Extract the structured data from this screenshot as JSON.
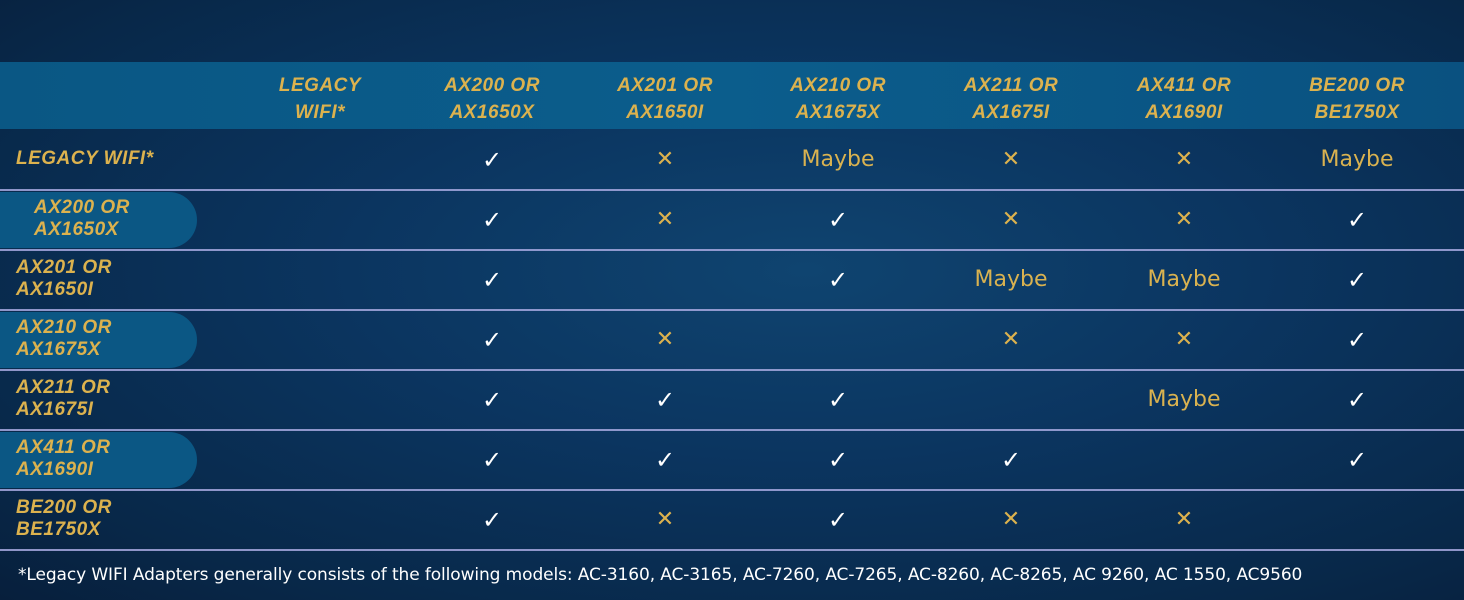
{
  "colors": {
    "gold": "#dcb24e",
    "check": "#ffffff",
    "header_band": "#0a5784",
    "background": "#0b3560",
    "row_divider": "#a7a9e0"
  },
  "symbols": {
    "yes": "✓",
    "no": "✕"
  },
  "columns": [
    [
      "LEGACY",
      "WIFI*"
    ],
    [
      "AX200 OR",
      "AX1650X"
    ],
    [
      "AX201 OR",
      "AX1650I"
    ],
    [
      "AX210 OR",
      "AX1675X"
    ],
    [
      "AX211 OR",
      "AX1675I"
    ],
    [
      "AX411 OR",
      "AX1690I"
    ],
    [
      "BE200 OR",
      "BE1750X"
    ]
  ],
  "rows": [
    {
      "label": [
        "LEGACY WIFI*"
      ],
      "highlight": false,
      "cells": [
        "",
        "yes",
        "no",
        "Maybe",
        "no",
        "no",
        "Maybe"
      ]
    },
    {
      "label": [
        "AX200 OR",
        "AX1650X"
      ],
      "highlight": true,
      "cells": [
        "",
        "yes",
        "no",
        "yes",
        "no",
        "no",
        "yes"
      ]
    },
    {
      "label": [
        "AX201 OR",
        "AX1650I"
      ],
      "highlight": false,
      "cells": [
        "",
        "yes",
        "",
        "yes",
        "Maybe",
        "Maybe",
        "yes"
      ]
    },
    {
      "label": [
        "AX210 OR",
        "AX1675X"
      ],
      "highlight": true,
      "cells": [
        "",
        "yes",
        "no",
        "",
        "no",
        "no",
        "yes"
      ]
    },
    {
      "label": [
        "AX211 OR",
        "AX1675I"
      ],
      "highlight": false,
      "cells": [
        "",
        "yes",
        "yes",
        "yes",
        "",
        "Maybe",
        "yes"
      ]
    },
    {
      "label": [
        "AX411 OR",
        "AX1690I"
      ],
      "highlight": true,
      "cells": [
        "",
        "yes",
        "yes",
        "yes",
        "yes",
        "",
        "yes"
      ]
    },
    {
      "label": [
        "BE200 OR",
        "BE1750X"
      ],
      "highlight": false,
      "cells": [
        "",
        "yes",
        "no",
        "yes",
        "no",
        "no",
        ""
      ]
    }
  ],
  "footnote": "*Legacy WIFI Adapters generally consists of the following models: AC-3160, AC-3165, AC-7260, AC-7265, AC-8260, AC-8265, AC 9260, AC 1550, AC9560"
}
